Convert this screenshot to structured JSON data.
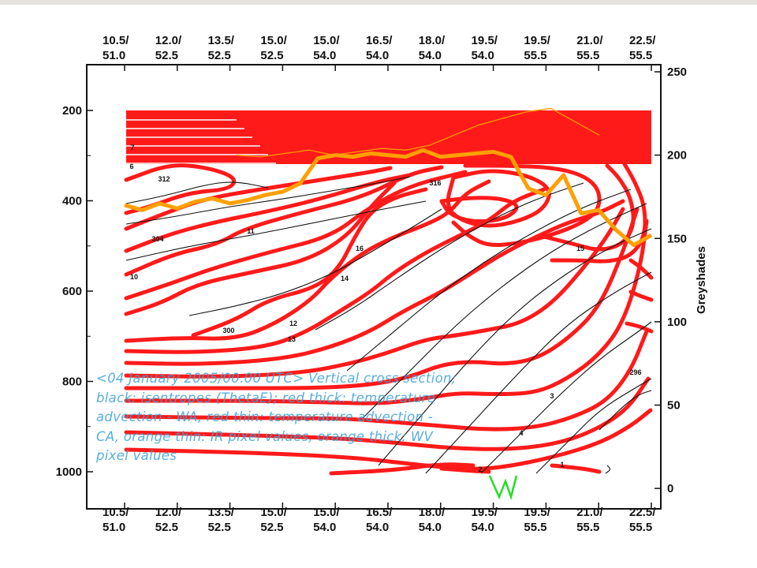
{
  "chart_data": {
    "type": "contour",
    "title": "",
    "caption": "<04 January 2005/00.00 UTC> Vertical cross section; black: isentropes (ThetaE); red thick: temperature advection - WA, red thin: temperature advection - CA, orange thin: IR pixel values, orange thick: WV pixel values",
    "x_tick_labels": [
      "10.5/\n51.0",
      "12.0/\n52.5",
      "13.5/\n52.5",
      "15.0/\n52.5",
      "15.0/\n54.0",
      "16.5/\n54.0",
      "18.0/\n54.0",
      "19.5/\n54.0",
      "19.5/\n55.5",
      "21.0/\n55.5",
      "22.5/\n55.5"
    ],
    "y_left": {
      "ticks": [
        "200",
        "400",
        "600",
        "800",
        "1000"
      ],
      "range": [
        1100,
        100
      ],
      "label": ""
    },
    "y_right": {
      "ticks": [
        "0",
        "50",
        "100",
        "150",
        "200",
        "250"
      ],
      "range": [
        -10,
        255
      ],
      "label": "Greyshades"
    },
    "ir_pixel_values": [
      200,
      199,
      201,
      203,
      200,
      202,
      204,
      203,
      206,
      212,
      218,
      222,
      226,
      228,
      220,
      212
    ],
    "wv_pixel_values": [
      170,
      167,
      171,
      168,
      172,
      174,
      171,
      173,
      176,
      178,
      183,
      198,
      200,
      199,
      201,
      200,
      199,
      203,
      199,
      200,
      201,
      202,
      199,
      180,
      176,
      188,
      165,
      167,
      155,
      146,
      152
    ],
    "contour_labels": [
      "11",
      "10",
      "7",
      "6",
      "14",
      "12",
      "13",
      "16",
      "15",
      "4",
      "3",
      "2",
      "1",
      "300",
      "304",
      "312",
      "316",
      "296"
    ],
    "colors": {
      "isentropes": "#000000",
      "wa": "#ff1a1a",
      "ca": "#ff3030",
      "ir": "#ff9a00",
      "wv": "#ffa000",
      "marker": "#22dd22",
      "caption": "#3aa0d8"
    }
  }
}
